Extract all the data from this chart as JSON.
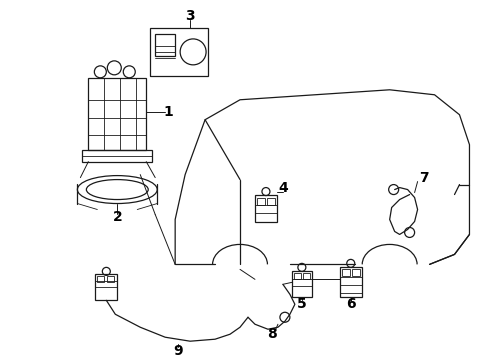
{
  "bg_color": "#ffffff",
  "line_color": "#1a1a1a",
  "text_color": "#000000",
  "fig_width": 4.9,
  "fig_height": 3.6,
  "dpi": 100
}
